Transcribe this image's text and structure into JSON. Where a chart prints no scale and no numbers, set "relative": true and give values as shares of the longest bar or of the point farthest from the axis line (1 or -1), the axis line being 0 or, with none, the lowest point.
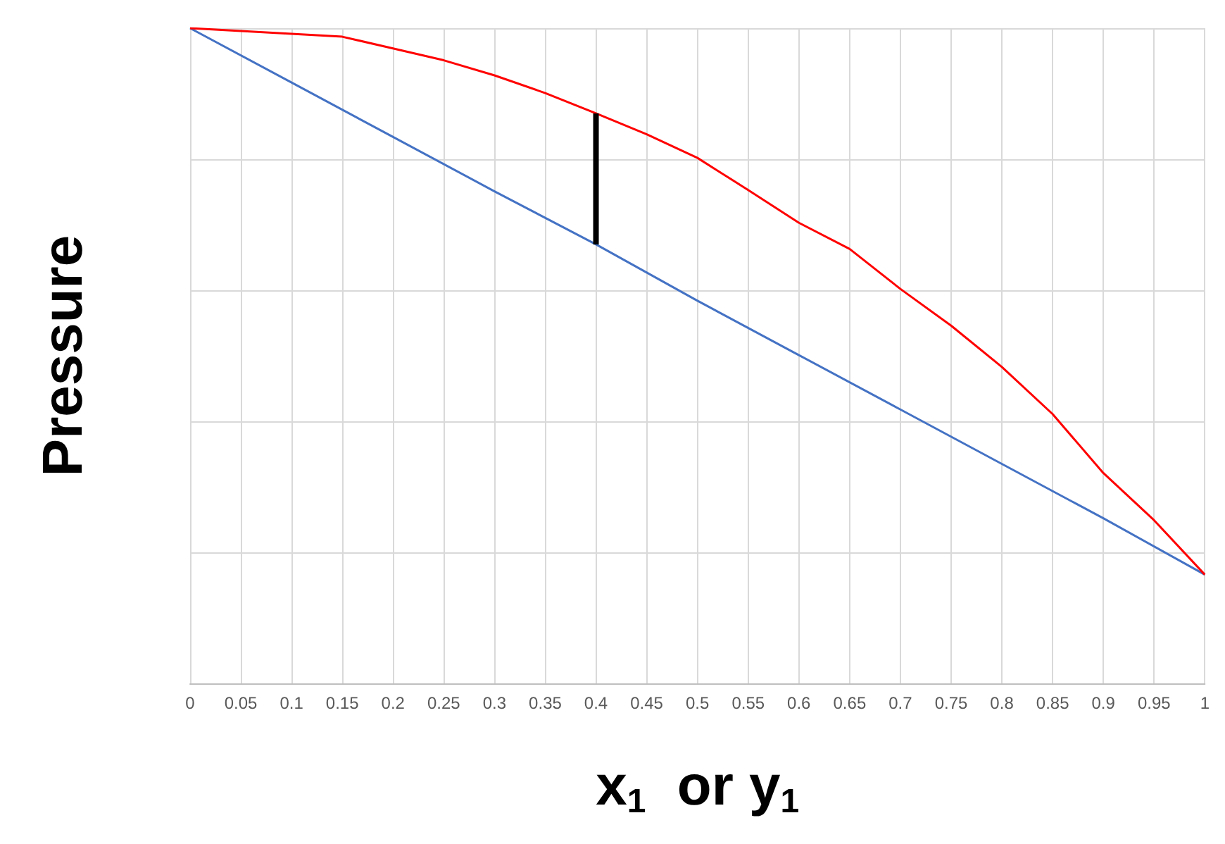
{
  "chart_data": {
    "type": "line",
    "relative": true,
    "xlabel": "x$_{1}$  or y$_{1}$",
    "ylabel": "Pressure",
    "xlim": [
      0,
      1
    ],
    "xticks": [
      0,
      0.05,
      0.1,
      0.15,
      0.2,
      0.25,
      0.3,
      0.35,
      0.4,
      0.45,
      0.5,
      0.55,
      0.6,
      0.65,
      0.7,
      0.75,
      0.8,
      0.85,
      0.9,
      0.95,
      1
    ],
    "tick_labels": "x",
    "grid": true,
    "marker": "none",
    "line_style": "solid",
    "series": [
      {
        "color": "#4472c4",
        "x": [
          0,
          0.1,
          0.2,
          0.3,
          0.4,
          0.5,
          0.6,
          0.7,
          0.8,
          0.9,
          1
        ],
        "values": [
          1,
          0.917,
          0.834,
          0.751,
          0.67,
          0.584,
          0.501,
          0.418,
          0.335,
          0.252,
          0.166
        ]
      },
      {
        "color": "#ff0000",
        "x": [
          0,
          0.15,
          0.2,
          0.25,
          0.3,
          0.35,
          0.4,
          0.45,
          0.5,
          0.55,
          0.6,
          0.65,
          0.7,
          0.75,
          0.8,
          0.85,
          0.9,
          0.95,
          1
        ],
        "values": [
          1,
          0.987,
          0.969,
          0.951,
          0.928,
          0.901,
          0.87,
          0.838,
          0.802,
          0.753,
          0.703,
          0.663,
          0.602,
          0.546,
          0.483,
          0.411,
          0.321,
          0.249,
          0.166
        ]
      },
      {
        "color": "#000000",
        "x": [
          0.4,
          0.4
        ],
        "values": [
          0.67,
          0.87
        ]
      }
    ]
  }
}
